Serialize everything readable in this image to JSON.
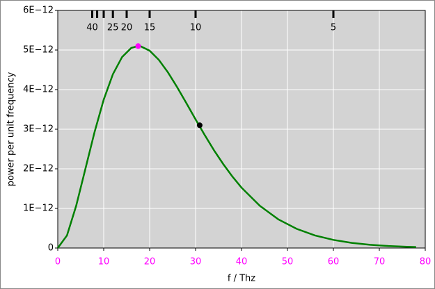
{
  "chart_data": {
    "type": "line",
    "xlabel": "f / Thz",
    "ylabel": "power per unit frequency",
    "x": [
      0,
      2,
      4,
      6,
      8,
      10,
      12,
      14,
      16,
      17.5,
      18,
      20,
      22,
      24,
      26,
      28,
      30,
      32,
      34,
      36,
      38,
      40,
      44,
      48,
      52,
      56,
      60,
      64,
      68,
      72,
      76,
      78
    ],
    "series": [
      {
        "color": "#008000",
        "values": [
          0,
          3.16e-13,
          1.063e-12,
          1.992e-12,
          2.925e-12,
          3.747e-12,
          4.389e-12,
          4.823e-12,
          5.053e-12,
          5.1e-12,
          5.096e-12,
          4.983e-12,
          4.752e-12,
          4.433e-12,
          4.059e-12,
          3.657e-12,
          3.248e-12,
          2.85e-12,
          2.471e-12,
          2.123e-12,
          1.807e-12,
          1.525e-12,
          1.065e-12,
          7.25e-13,
          4.84e-13,
          3.17e-13,
          2.05e-13,
          1.3e-13,
          8.2e-14,
          5.1e-14,
          3.15e-14,
          2.47e-14
        ]
      }
    ],
    "markers": [
      {
        "x": 17.5,
        "y": 5.1e-12,
        "color": "#ff00ff"
      },
      {
        "x": 30.9,
        "y": 3.1e-12,
        "color": "#000000"
      }
    ],
    "xlim": [
      0,
      80
    ],
    "xticks": [
      0,
      10,
      20,
      30,
      40,
      50,
      60,
      70,
      80
    ],
    "xtick_color": "#ff00ff",
    "ylim": [
      0,
      6e-12
    ],
    "yticks": [
      0,
      {
        "value": 1e-12,
        "label": "1E−12"
      },
      {
        "value": 2e-12,
        "label": "2E−12"
      },
      {
        "value": 3e-12,
        "label": "3E−12"
      },
      {
        "value": 4e-12,
        "label": "4E−12"
      },
      {
        "value": 5e-12,
        "label": "5E−12"
      },
      {
        "value": 6e-12,
        "label": "6E−12"
      }
    ],
    "top_ticks": [
      {
        "value": 7.5,
        "label": "40"
      },
      {
        "value": 8.571,
        "label": null
      },
      {
        "value": 10,
        "label": null
      },
      {
        "value": 12,
        "label": "25"
      },
      {
        "value": 15,
        "label": "20"
      },
      {
        "value": 20,
        "label": "15"
      },
      {
        "value": 30,
        "label": "10"
      },
      {
        "value": 60,
        "label": "5"
      }
    ],
    "grid": true
  }
}
